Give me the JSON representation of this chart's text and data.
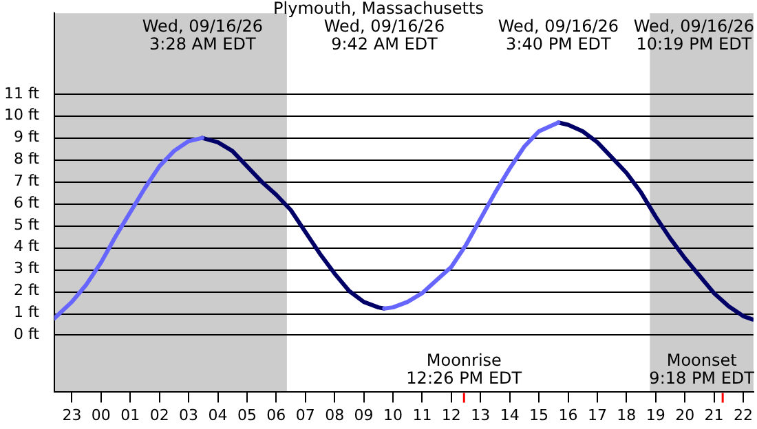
{
  "chart_data": {
    "type": "line",
    "title": "Plymouth, Massachusetts",
    "xlim": [
      "--09-15T22:24",
      "--09-16T22:21"
    ],
    "xticks": [
      {
        "value": "--09-15T23:00",
        "label": "23"
      },
      {
        "value": "--09-16T00:00",
        "label": "00"
      },
      {
        "value": "--09-16T01:00",
        "label": "01"
      },
      {
        "value": "--09-16T02:00",
        "label": "02"
      },
      {
        "value": "--09-16T03:00",
        "label": "03"
      },
      {
        "value": "--09-16T04:00",
        "label": "04"
      },
      {
        "value": "--09-16T05:00",
        "label": "05"
      },
      {
        "value": "--09-16T06:00",
        "label": "06"
      },
      {
        "value": "--09-16T07:00",
        "label": "07"
      },
      {
        "value": "--09-16T08:00",
        "label": "08"
      },
      {
        "value": "--09-16T09:00",
        "label": "09"
      },
      {
        "value": "--09-16T10:00",
        "label": "10"
      },
      {
        "value": "--09-16T11:00",
        "label": "11"
      },
      {
        "value": "--09-16T12:00",
        "label": "12"
      },
      {
        "value": "--09-16T13:00",
        "label": "13"
      },
      {
        "value": "--09-16T14:00",
        "label": "14"
      },
      {
        "value": "--09-16T15:00",
        "label": "15"
      },
      {
        "value": "--09-16T16:00",
        "label": "16"
      },
      {
        "value": "--09-16T17:00",
        "label": "17"
      },
      {
        "value": "--09-16T18:00",
        "label": "18"
      },
      {
        "value": "--09-16T19:00",
        "label": "19"
      },
      {
        "value": "--09-16T20:00",
        "label": "20"
      },
      {
        "value": "--09-16T21:00",
        "label": "21"
      },
      {
        "value": "--09-16T22:00",
        "label": "22"
      }
    ],
    "ylim": [
      -2.6,
      14.7
    ],
    "yticks": [
      {
        "value": 0,
        "label": "0 ft"
      },
      {
        "value": 1,
        "label": "1 ft"
      },
      {
        "value": 2,
        "label": "2 ft"
      },
      {
        "value": 3,
        "label": "3 ft"
      },
      {
        "value": 4,
        "label": "4 ft"
      },
      {
        "value": 5,
        "label": "5 ft"
      },
      {
        "value": 6,
        "label": "6 ft"
      },
      {
        "value": 7,
        "label": "7 ft"
      },
      {
        "value": 8,
        "label": "8 ft"
      },
      {
        "value": 9,
        "label": "9 ft"
      },
      {
        "value": 10,
        "label": "10 ft"
      },
      {
        "value": 11,
        "label": "11 ft"
      }
    ],
    "grid": "y",
    "legend": false,
    "marker": "none",
    "line_style": "solid",
    "bands": [
      {
        "axis": "x",
        "from": "--09-15T22:24",
        "to": "--09-16T06:22",
        "color": "#cccccc"
      },
      {
        "axis": "x",
        "from": "--09-16T18:48",
        "to": "--09-16T22:21",
        "color": "#cccccc"
      }
    ],
    "series": [
      {
        "color": "#6666ff",
        "x": [
          "--09-15T22:24",
          "--09-15T23:00",
          "--09-15T23:30",
          "--09-16T00:00",
          "--09-16T00:30",
          "--09-16T01:00",
          "--09-16T01:30",
          "--09-16T02:00",
          "--09-16T02:30",
          "--09-16T03:00",
          "--09-16T03:28",
          null,
          "--09-16T09:42",
          "--09-16T10:00",
          "--09-16T10:30",
          "--09-16T11:00",
          "--09-16T11:30",
          "--09-16T12:00",
          "--09-16T12:30",
          "--09-16T13:00",
          "--09-16T13:30",
          "--09-16T14:00",
          "--09-16T14:30",
          "--09-16T15:00",
          "--09-16T15:40"
        ],
        "values": [
          0.75,
          1.5,
          2.3,
          3.3,
          4.5,
          5.6,
          6.7,
          7.7,
          8.4,
          8.85,
          9.0,
          null,
          1.2,
          1.25,
          1.5,
          1.9,
          2.5,
          3.1,
          4.1,
          5.3,
          6.5,
          7.6,
          8.6,
          9.3,
          9.7
        ]
      },
      {
        "color": "#000066",
        "x": [
          "--09-16T03:28",
          "--09-16T04:00",
          "--09-16T04:30",
          "--09-16T05:00",
          "--09-16T05:30",
          "--09-16T06:00",
          "--09-16T06:30",
          "--09-16T07:00",
          "--09-16T07:30",
          "--09-16T08:00",
          "--09-16T08:30",
          "--09-16T09:00",
          "--09-16T09:30",
          "--09-16T09:42",
          null,
          "--09-16T15:40",
          "--09-16T16:00",
          "--09-16T16:30",
          "--09-16T17:00",
          "--09-16T17:30",
          "--09-16T18:00",
          "--09-16T18:30",
          "--09-16T19:00",
          "--09-16T19:30",
          "--09-16T20:00",
          "--09-16T20:30",
          "--09-16T21:00",
          "--09-16T21:30",
          "--09-16T22:00",
          "--09-16T22:19"
        ],
        "values": [
          9.0,
          8.8,
          8.4,
          7.7,
          7.0,
          6.4,
          5.7,
          4.7,
          3.7,
          2.8,
          2.0,
          1.5,
          1.25,
          1.2,
          null,
          9.7,
          9.6,
          9.3,
          8.8,
          8.1,
          7.4,
          6.5,
          5.4,
          4.4,
          3.5,
          2.7,
          1.9,
          1.3,
          0.85,
          0.7
        ]
      }
    ],
    "annotations": [
      "Wed, 09/16/26\n3:28 AM EDT",
      "Wed, 09/16/26\n9:42 AM EDT",
      "Wed, 09/16/26\n3:40 PM EDT",
      "Wed, 09/16/26\n10:19 PM EDT",
      "Moonrise\n12:26 PM EDT",
      "Moonset\n9:18 PM EDT"
    ]
  }
}
